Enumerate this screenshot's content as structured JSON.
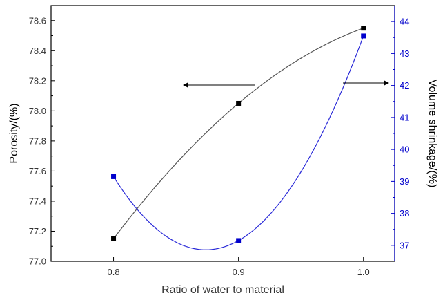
{
  "chart_data": {
    "type": "line",
    "title": "",
    "xlabel": "Ratio of water to material",
    "x_ticks": [
      "0.8",
      "0.9",
      "1.0"
    ],
    "xlim": [
      0.75,
      1.025
    ],
    "grid": false,
    "legend": "none",
    "series": [
      {
        "axis": "left",
        "ylabel": "Porosity/(%)",
        "ylim": [
          77.0,
          78.7
        ],
        "y_ticks": [
          "77.0",
          "77.2",
          "77.4",
          "77.6",
          "77.8",
          "78.0",
          "78.2",
          "78.4",
          "78.6"
        ],
        "color": "#000000",
        "line_color": "#555555",
        "x": [
          0.8,
          0.9,
          1.0
        ],
        "y": [
          77.15,
          78.05,
          78.55
        ]
      },
      {
        "axis": "right",
        "ylabel": "Volume shrinkage/(%)",
        "ylim": [
          36.5,
          44.5
        ],
        "y_ticks": [
          "37",
          "38",
          "39",
          "40",
          "41",
          "42",
          "43",
          "44"
        ],
        "color": "#0000cc",
        "line_color": "#2a2ad8",
        "x": [
          0.8,
          0.9,
          1.0
        ],
        "y": [
          39.15,
          37.15,
          43.55
        ]
      }
    ],
    "annotations": [
      {
        "type": "arrow",
        "direction": "left",
        "points_to": "left-axis",
        "series": "left"
      },
      {
        "type": "arrow",
        "direction": "right",
        "points_to": "right-axis",
        "series": "right"
      }
    ]
  }
}
